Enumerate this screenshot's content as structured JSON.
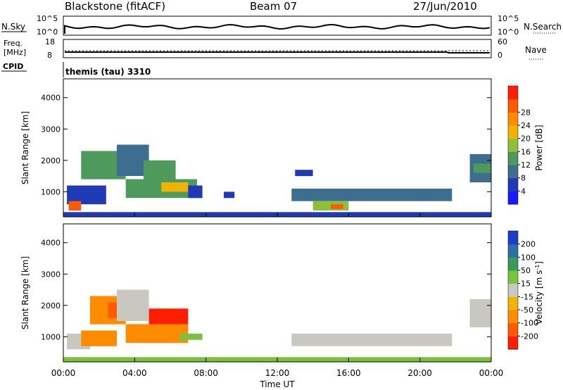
{
  "header": {
    "station": "Blackstone (fitACF)",
    "beam": "Beam 07",
    "date": "27/Jun/2010"
  },
  "panels": {
    "nsky_label": "N.Sky",
    "nsky_ticks": [
      "10^5",
      "10^0"
    ],
    "nsearch_label": "N.Search",
    "nsearch_ticks": [
      "10^5",
      "10^0"
    ],
    "freq_label_line1": "Freq.",
    "freq_label_line2": "[MHz]",
    "freq_ticks": [
      "18",
      "8"
    ],
    "nave_label": "Nave",
    "nave_ticks": [
      "60",
      "0"
    ],
    "cpid_label": "CPID",
    "cpid_text": "themis (tau) 3310"
  },
  "chart_data": [
    {
      "type": "heatmap",
      "name": "power",
      "ylabel": "Slant Range [km]",
      "yticks": [
        "1000",
        "2000",
        "3000",
        "4000"
      ],
      "ylim": [
        200,
        4600
      ],
      "xlim": [
        0,
        24
      ],
      "colorbar": {
        "label": "Power [dB]",
        "ticks": [
          "4",
          "8",
          "12",
          "16",
          "20",
          "24",
          "28"
        ],
        "colors": [
          "#1a1aff",
          "#1f3ab4",
          "#3d6e8f",
          "#4e9a5c",
          "#8fbf3a",
          "#f0b400",
          "#ff8c00",
          "#ff5a00",
          "#ff1e00"
        ]
      },
      "regions": [
        {
          "t0": 0.2,
          "t1": 2.4,
          "r0": 600,
          "r1": 1200,
          "v": 8
        },
        {
          "t0": 0.3,
          "t1": 1.0,
          "r0": 400,
          "r1": 700,
          "v": 26
        },
        {
          "t0": 1.0,
          "t1": 3.5,
          "r0": 1400,
          "r1": 2300,
          "v": 12
        },
        {
          "t0": 3.0,
          "t1": 4.8,
          "r0": 1500,
          "r1": 2500,
          "v": 10
        },
        {
          "t0": 4.5,
          "t1": 6.3,
          "r0": 1400,
          "r1": 2000,
          "v": 14
        },
        {
          "t0": 3.5,
          "t1": 7.5,
          "r0": 800,
          "r1": 1400,
          "v": 12
        },
        {
          "t0": 5.5,
          "t1": 7.0,
          "r0": 1000,
          "r1": 1300,
          "v": 18
        },
        {
          "t0": 7.0,
          "t1": 7.8,
          "r0": 800,
          "r1": 1200,
          "v": 8
        },
        {
          "t0": 9.0,
          "t1": 9.6,
          "r0": 800,
          "r1": 1000,
          "v": 6
        },
        {
          "t0": 12.8,
          "t1": 21.8,
          "r0": 700,
          "r1": 1100,
          "v": 10
        },
        {
          "t0": 14.0,
          "t1": 16.0,
          "r0": 400,
          "r1": 700,
          "v": 16
        },
        {
          "t0": 15.0,
          "t1": 15.7,
          "r0": 450,
          "r1": 600,
          "v": 26
        },
        {
          "t0": 13.0,
          "t1": 14.0,
          "r0": 1500,
          "r1": 1700,
          "v": 6
        },
        {
          "t0": 22.8,
          "t1": 24.0,
          "r0": 1300,
          "r1": 2200,
          "v": 10
        },
        {
          "t0": 23.0,
          "t1": 24.0,
          "r0": 1600,
          "r1": 1900,
          "v": 14
        },
        {
          "t0": 0.0,
          "t1": 24.0,
          "r0": 200,
          "r1": 350,
          "v": 6
        }
      ]
    },
    {
      "type": "heatmap",
      "name": "velocity",
      "ylabel": "Slant Range [km]",
      "yticks": [
        "1000",
        "2000",
        "3000",
        "4000"
      ],
      "ylim": [
        200,
        4600
      ],
      "xlim": [
        0,
        24
      ],
      "xticks": [
        "00:00",
        "04:00",
        "08:00",
        "12:00",
        "16:00",
        "20:00",
        "00:00"
      ],
      "xlabel": "Time UT",
      "colorbar": {
        "label": "Velocity [m s",
        "label_sup": "-1",
        "label_end": "]",
        "ticks": [
          "200",
          "100",
          "50",
          "15",
          "-15",
          "-50",
          "-100",
          "-200"
        ],
        "colors": [
          "#1a3cc8",
          "#2b6fa8",
          "#3a9a58",
          "#7ac23a",
          "#c8c8c0",
          "#f0b400",
          "#ff8c00",
          "#ff5a00",
          "#ff1e00"
        ]
      },
      "regions": [
        {
          "t0": 0.2,
          "t1": 1.5,
          "r0": 600,
          "r1": 1100,
          "v": 0
        },
        {
          "t0": 1.0,
          "t1": 3.0,
          "r0": 700,
          "r1": 1200,
          "v": -60
        },
        {
          "t0": 1.5,
          "t1": 3.5,
          "r0": 1400,
          "r1": 2300,
          "v": -80
        },
        {
          "t0": 2.5,
          "t1": 3.2,
          "r0": 1600,
          "r1": 2100,
          "v": -200
        },
        {
          "t0": 3.0,
          "t1": 4.8,
          "r0": 1500,
          "r1": 2500,
          "v": 0
        },
        {
          "t0": 3.5,
          "t1": 7.0,
          "r0": 800,
          "r1": 1400,
          "v": -70
        },
        {
          "t0": 4.8,
          "t1": 7.0,
          "r0": 1400,
          "r1": 1900,
          "v": -220
        },
        {
          "t0": 6.5,
          "t1": 7.8,
          "r0": 900,
          "r1": 1100,
          "v": 30
        },
        {
          "t0": 12.8,
          "t1": 21.8,
          "r0": 700,
          "r1": 1100,
          "v": 0
        },
        {
          "t0": 22.8,
          "t1": 24.0,
          "r0": 1300,
          "r1": 2200,
          "v": 0
        },
        {
          "t0": 0.0,
          "t1": 24.0,
          "r0": 200,
          "r1": 350,
          "v": 40
        }
      ]
    }
  ]
}
